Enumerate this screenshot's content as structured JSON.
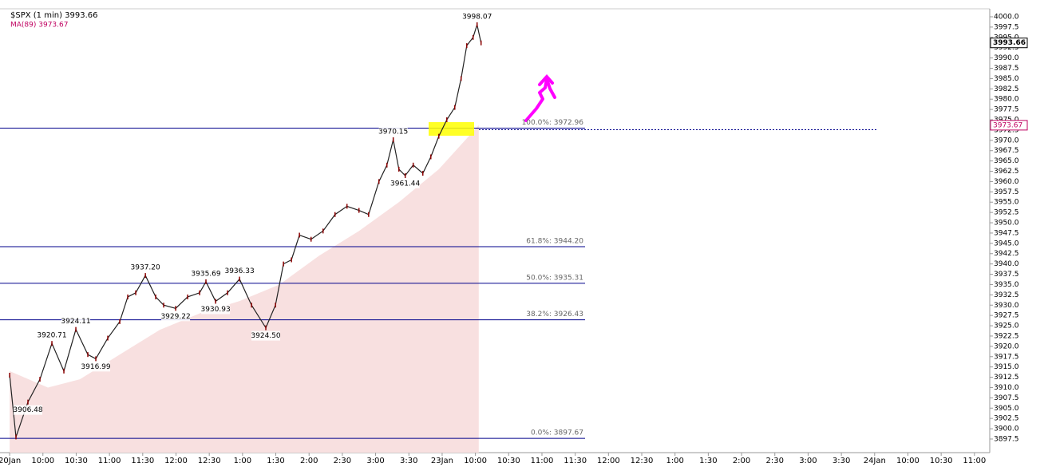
{
  "chart_data": {
    "type": "line",
    "series": [
      {
        "name": "$SPX (1 min) 3993.66",
        "color": "#8b0000",
        "x": [
          0,
          0.19,
          0.55,
          0.91,
          1.27,
          1.63,
          1.99,
          2.35,
          2.59,
          2.95,
          3.31,
          3.55,
          3.79,
          4.08,
          4.39,
          4.63,
          4.99,
          5.35,
          5.71,
          5.9,
          6.19,
          6.55,
          6.91,
          7.27,
          7.7,
          7.99,
          8.23,
          8.47,
          8.71,
          9.06,
          9.42,
          9.78,
          10.14,
          10.5,
          10.79,
          11.1,
          11.34,
          11.53,
          11.7,
          11.89,
          12.13,
          12.42,
          12.66,
          12.9,
          13.14,
          13.38,
          13.57,
          13.74,
          13.93,
          14.05,
          14.17
        ],
        "values": [
          3913,
          3898,
          3906.48,
          3912,
          3920.71,
          3914,
          3924.11,
          3918,
          3916.99,
          3922,
          3926,
          3932,
          3933,
          3937.2,
          3932,
          3930,
          3929.22,
          3932,
          3933,
          3935.69,
          3930.93,
          3933,
          3936.33,
          3930,
          3924.5,
          3930,
          3940,
          3941,
          3947,
          3946,
          3948,
          3952,
          3954,
          3953,
          3952,
          3960,
          3964,
          3970.15,
          3963,
          3961.44,
          3964,
          3962,
          3966,
          3971,
          3975,
          3978,
          3985,
          3993,
          3995,
          3998.07,
          3993.66
        ]
      },
      {
        "name": "MA(89) 3973.67",
        "color": "#c00060",
        "fill": "#f8e0e0",
        "x": [
          0,
          1.15,
          2.11,
          3.31,
          4.51,
          5.71,
          6.91,
          8.11,
          9.3,
          10.5,
          11.7,
          12.9,
          14.1
        ],
        "values": [
          3914,
          3910,
          3912,
          3918,
          3924,
          3928,
          3931,
          3935,
          3942,
          3948,
          3955,
          3963,
          3973.67
        ]
      }
    ],
    "annotations": [
      {
        "x": 14.05,
        "value": 3998.07,
        "kind": "high"
      },
      {
        "x": 11.53,
        "value": 3970.15,
        "kind": "high"
      },
      {
        "x": 11.89,
        "value": 3961.44,
        "kind": "low"
      },
      {
        "x": 4.08,
        "value": 3937.2,
        "label": "3937.20",
        "kind": "high"
      },
      {
        "x": 5.9,
        "value": 3935.69,
        "kind": "high"
      },
      {
        "x": 6.91,
        "value": 3936.33,
        "kind": "high"
      },
      {
        "x": 6.19,
        "value": 3930.93,
        "kind": "low"
      },
      {
        "x": 4.99,
        "value": 3929.22,
        "kind": "low"
      },
      {
        "x": 7.7,
        "value": 3924.5,
        "label": "3924.50",
        "kind": "low"
      },
      {
        "x": 1.99,
        "value": 3924.11,
        "kind": "high"
      },
      {
        "x": 1.27,
        "value": 3920.71,
        "kind": "high"
      },
      {
        "x": 2.59,
        "value": 3916.99,
        "kind": "low"
      },
      {
        "x": 0.55,
        "value": 3906.48,
        "kind": "low"
      }
    ],
    "fib_levels": [
      {
        "value": 3972.96,
        "label": "100.0%: 3972.96"
      },
      {
        "value": 3944.2,
        "label": "61.8%: 3944.20"
      },
      {
        "value": 3935.31,
        "label": "50.0%: 3935.31"
      },
      {
        "value": 3926.43,
        "label": "38.2%: 3926.43"
      },
      {
        "value": 3897.67,
        "label": "0.0%: 3897.67"
      }
    ],
    "price_markers": [
      {
        "value": 3993.66,
        "color": "#000000"
      },
      {
        "value": 3973.67,
        "color": "#c00060"
      }
    ],
    "xlim": [
      -0.29,
      29.46
    ],
    "xticks": [
      {
        "value": 0,
        "label": "20Jan"
      },
      {
        "value": 1,
        "label": "10:00"
      },
      {
        "value": 2,
        "label": "10:30"
      },
      {
        "value": 3,
        "label": "11:00"
      },
      {
        "value": 4,
        "label": "11:30"
      },
      {
        "value": 5,
        "label": "12:00"
      },
      {
        "value": 6,
        "label": "12:30"
      },
      {
        "value": 7,
        "label": "1:00"
      },
      {
        "value": 8,
        "label": "1:30"
      },
      {
        "value": 9,
        "label": "2:00"
      },
      {
        "value": 10,
        "label": "2:30"
      },
      {
        "value": 11,
        "label": "3:00"
      },
      {
        "value": 12,
        "label": "3:30"
      },
      {
        "value": 13,
        "label": "23Jan"
      },
      {
        "value": 14,
        "label": "10:00"
      },
      {
        "value": 15,
        "label": "10:30"
      },
      {
        "value": 16,
        "label": "11:00"
      },
      {
        "value": 17,
        "label": "11:30"
      },
      {
        "value": 18,
        "label": "12:00"
      },
      {
        "value": 19,
        "label": "12:30"
      },
      {
        "value": 20,
        "label": "1:00"
      },
      {
        "value": 21,
        "label": "1:30"
      },
      {
        "value": 22,
        "label": "2:00"
      },
      {
        "value": 23,
        "label": "2:30"
      },
      {
        "value": 24,
        "label": "3:00"
      },
      {
        "value": 25,
        "label": "3:30"
      },
      {
        "value": 26,
        "label": "24Jan"
      },
      {
        "value": 27,
        "label": "10:00"
      },
      {
        "value": 28,
        "label": "10:30"
      },
      {
        "value": 29,
        "label": "11:00"
      }
    ],
    "ylim": [
      3894.2,
      4001.94
    ],
    "yticks": [
      {
        "value": 3897.5,
        "label": "3897.5"
      },
      {
        "value": 3900,
        "label": "3900.0"
      },
      {
        "value": 3902.5,
        "label": "3902.5"
      },
      {
        "value": 3905,
        "label": "3905.0"
      },
      {
        "value": 3907.5,
        "label": "3907.5"
      },
      {
        "value": 3910,
        "label": "3910.0"
      },
      {
        "value": 3912.5,
        "label": "3912.5"
      },
      {
        "value": 3915,
        "label": "3915.0"
      },
      {
        "value": 3917.5,
        "label": "3917.5"
      },
      {
        "value": 3920,
        "label": "3920.0"
      },
      {
        "value": 3922.5,
        "label": "3922.5"
      },
      {
        "value": 3925,
        "label": "3925.0"
      },
      {
        "value": 3927.5,
        "label": "3927.5"
      },
      {
        "value": 3930,
        "label": "3930.0"
      },
      {
        "value": 3932.5,
        "label": "3932.5"
      },
      {
        "value": 3935,
        "label": "3935.0"
      },
      {
        "value": 3937.5,
        "label": "3937.5"
      },
      {
        "value": 3940,
        "label": "3940.0"
      },
      {
        "value": 3942.5,
        "label": "3942.5"
      },
      {
        "value": 3945,
        "label": "3945.0"
      },
      {
        "value": 3947.5,
        "label": "3947.5"
      },
      {
        "value": 3950,
        "label": "3950.0"
      },
      {
        "value": 3952.5,
        "label": "3952.5"
      },
      {
        "value": 3955,
        "label": "3955.0"
      },
      {
        "value": 3957.5,
        "label": "3957.5"
      },
      {
        "value": 3960,
        "label": "3960.0"
      },
      {
        "value": 3962.5,
        "label": "3962.5"
      },
      {
        "value": 3965,
        "label": "3965.0"
      },
      {
        "value": 3967.5,
        "label": "3967.5"
      },
      {
        "value": 3970,
        "label": "3970.0"
      },
      {
        "value": 3972.5,
        "label": "3972.5"
      },
      {
        "value": 3975,
        "label": "3975.0"
      },
      {
        "value": 3977.5,
        "label": "3977.5"
      },
      {
        "value": 3980,
        "label": "3980.0"
      },
      {
        "value": 3982.5,
        "label": "3982.5"
      },
      {
        "value": 3985,
        "label": "3985.0"
      },
      {
        "value": 3987.5,
        "label": "3987.5"
      },
      {
        "value": 3990,
        "label": "3990.0"
      },
      {
        "value": 3992.5,
        "label": "3992.5"
      },
      {
        "value": 3995,
        "label": "3995.0"
      },
      {
        "value": 3997.5,
        "label": "3997.5"
      },
      {
        "value": 4000,
        "label": "4000.0"
      }
    ],
    "grid": false
  }
}
